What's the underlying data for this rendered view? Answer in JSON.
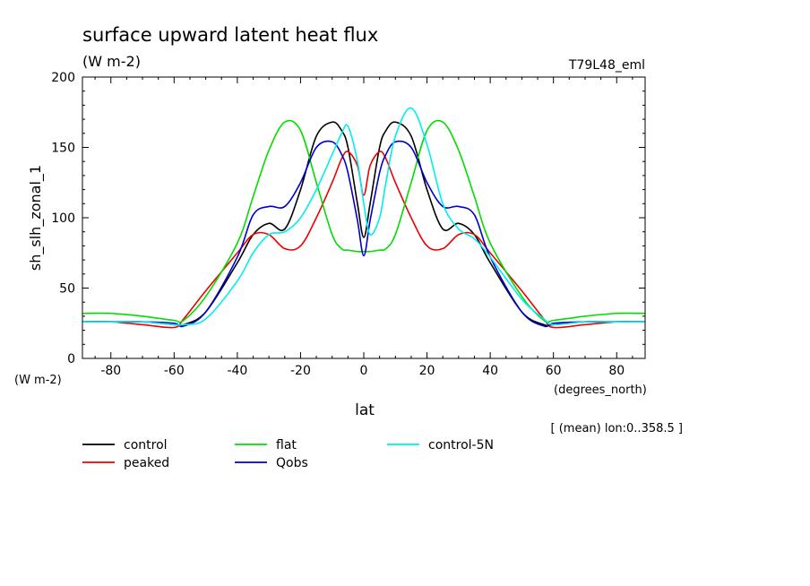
{
  "chart_data": {
    "type": "line",
    "title": "surface upward latent heat flux",
    "subtitle": "(W m-2)",
    "run_label": "T79L48_eml",
    "ylabel": "sh_slh_zonal_1",
    "yunits": "(W m-2)",
    "xlabel": "lat",
    "xunits": "(degrees_north)",
    "footnote": "[ (mean) lon:0..358.5 ]",
    "xlim": [
      -89,
      89
    ],
    "ylim": [
      0,
      200
    ],
    "xticks": [
      -80,
      -60,
      -40,
      -20,
      0,
      20,
      40,
      60,
      80
    ],
    "yticks": [
      0,
      50,
      100,
      150,
      200
    ],
    "x": [
      -89,
      -80,
      -70,
      -60,
      -57,
      -50,
      -40,
      -35,
      -30,
      -25,
      -20,
      -15,
      -10,
      -7,
      -5,
      -2,
      0,
      2,
      5,
      7,
      10,
      15,
      20,
      25,
      30,
      35,
      40,
      50,
      57,
      60,
      70,
      80,
      89
    ],
    "series": [
      {
        "name": "control",
        "color": "#000000",
        "values": [
          26,
          26,
          26,
          24,
          24,
          33,
          68,
          88,
          96,
          92,
          120,
          158,
          168,
          162,
          150,
          110,
          86,
          110,
          150,
          162,
          168,
          158,
          120,
          92,
          96,
          88,
          68,
          33,
          24,
          24,
          26,
          26,
          26
        ]
      },
      {
        "name": "peaked",
        "color": "#ee0000",
        "values": [
          26,
          26,
          24,
          22,
          28,
          48,
          75,
          88,
          88,
          78,
          80,
          100,
          125,
          142,
          147,
          137,
          116,
          137,
          147,
          142,
          125,
          100,
          80,
          78,
          88,
          88,
          75,
          48,
          28,
          22,
          24,
          26,
          26
        ]
      },
      {
        "name": "flat",
        "color": "#00dd00",
        "values": [
          32,
          32,
          30,
          27,
          27,
          44,
          82,
          115,
          148,
          168,
          162,
          125,
          88,
          78,
          77,
          76,
          76,
          76,
          77,
          78,
          88,
          125,
          162,
          168,
          148,
          115,
          82,
          44,
          27,
          27,
          30,
          32,
          32
        ]
      },
      {
        "name": "Qobs",
        "color": "#0000cc",
        "values": [
          26,
          26,
          26,
          25,
          23,
          33,
          72,
          102,
          108,
          108,
          125,
          150,
          154,
          145,
          132,
          98,
          73,
          98,
          132,
          145,
          154,
          150,
          125,
          108,
          108,
          102,
          72,
          33,
          23,
          25,
          26,
          26,
          26
        ]
      },
      {
        "name": "control-5N",
        "color": "#00eeee",
        "values": [
          26,
          26,
          26,
          24,
          24,
          28,
          55,
          75,
          88,
          90,
          100,
          120,
          145,
          160,
          165,
          140,
          110,
          88,
          100,
          125,
          158,
          178,
          152,
          110,
          92,
          85,
          72,
          42,
          28,
          24,
          26,
          26,
          26
        ]
      }
    ]
  }
}
